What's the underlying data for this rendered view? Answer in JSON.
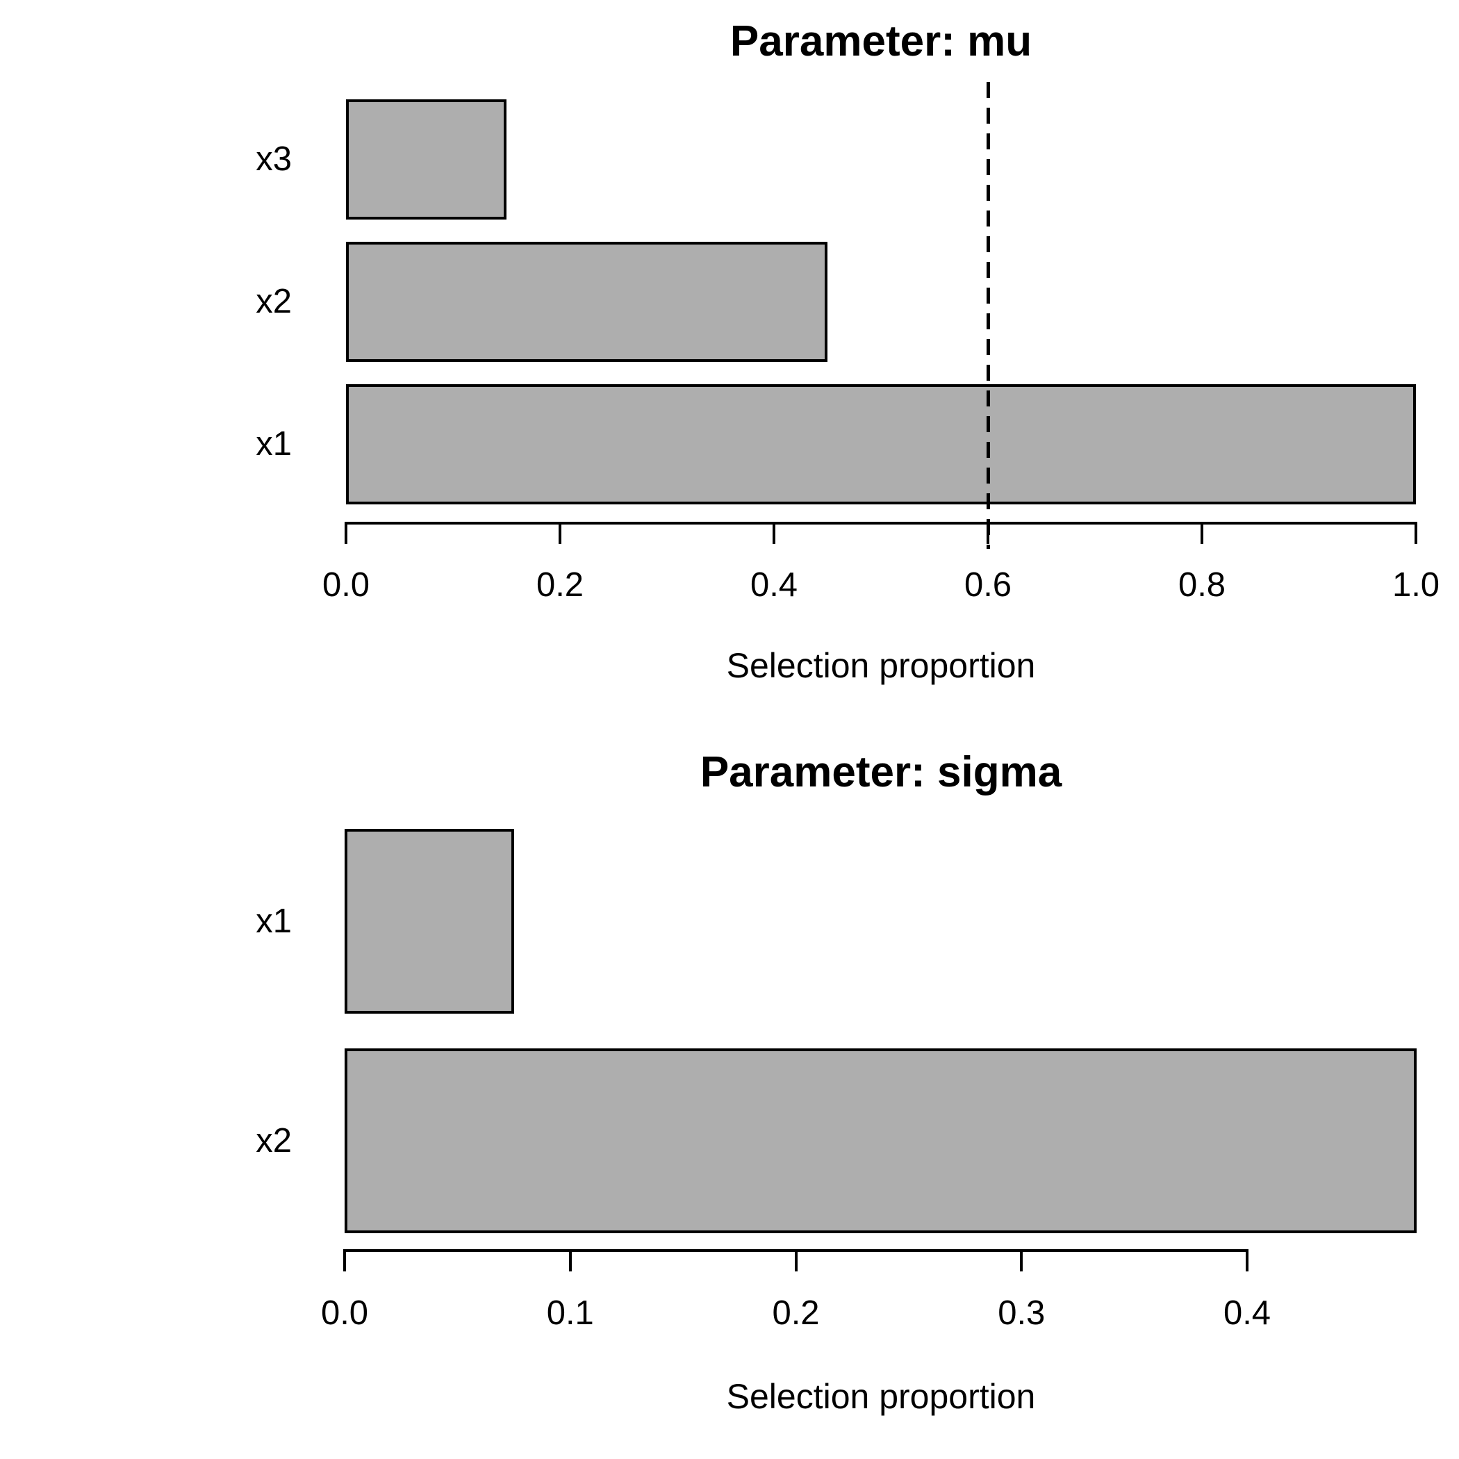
{
  "figure": {
    "background": "#ffffff",
    "bar_fill": "#aeaeae",
    "bar_border": "#000000",
    "text_color": "#000000"
  },
  "chart_data": [
    {
      "type": "bar",
      "orientation": "horizontal",
      "title": "Parameter: mu",
      "xlabel": "Selection proportion",
      "categories": [
        "x3",
        "x2",
        "x1"
      ],
      "values": [
        0.15,
        0.45,
        1.0
      ],
      "xlim": [
        0.0,
        1.0
      ],
      "xticks": [
        0.0,
        0.2,
        0.4,
        0.6,
        0.8,
        1.0
      ],
      "xtick_labels": [
        "0.0",
        "0.2",
        "0.4",
        "0.6",
        "0.8",
        "1.0"
      ],
      "grid": false,
      "legend": null,
      "threshold_line": {
        "x": 0.6,
        "style": "dashed",
        "color": "#000000"
      }
    },
    {
      "type": "bar",
      "orientation": "horizontal",
      "title": "Parameter: sigma",
      "xlabel": "Selection proportion",
      "categories": [
        "x1",
        "x2"
      ],
      "values": [
        0.075,
        0.475
      ],
      "xlim": [
        0.0,
        0.475
      ],
      "xticks": [
        0.0,
        0.1,
        0.2,
        0.3,
        0.4
      ],
      "xtick_labels": [
        "0.0",
        "0.1",
        "0.2",
        "0.3",
        "0.4"
      ],
      "grid": false,
      "legend": null,
      "threshold_line": null
    }
  ]
}
